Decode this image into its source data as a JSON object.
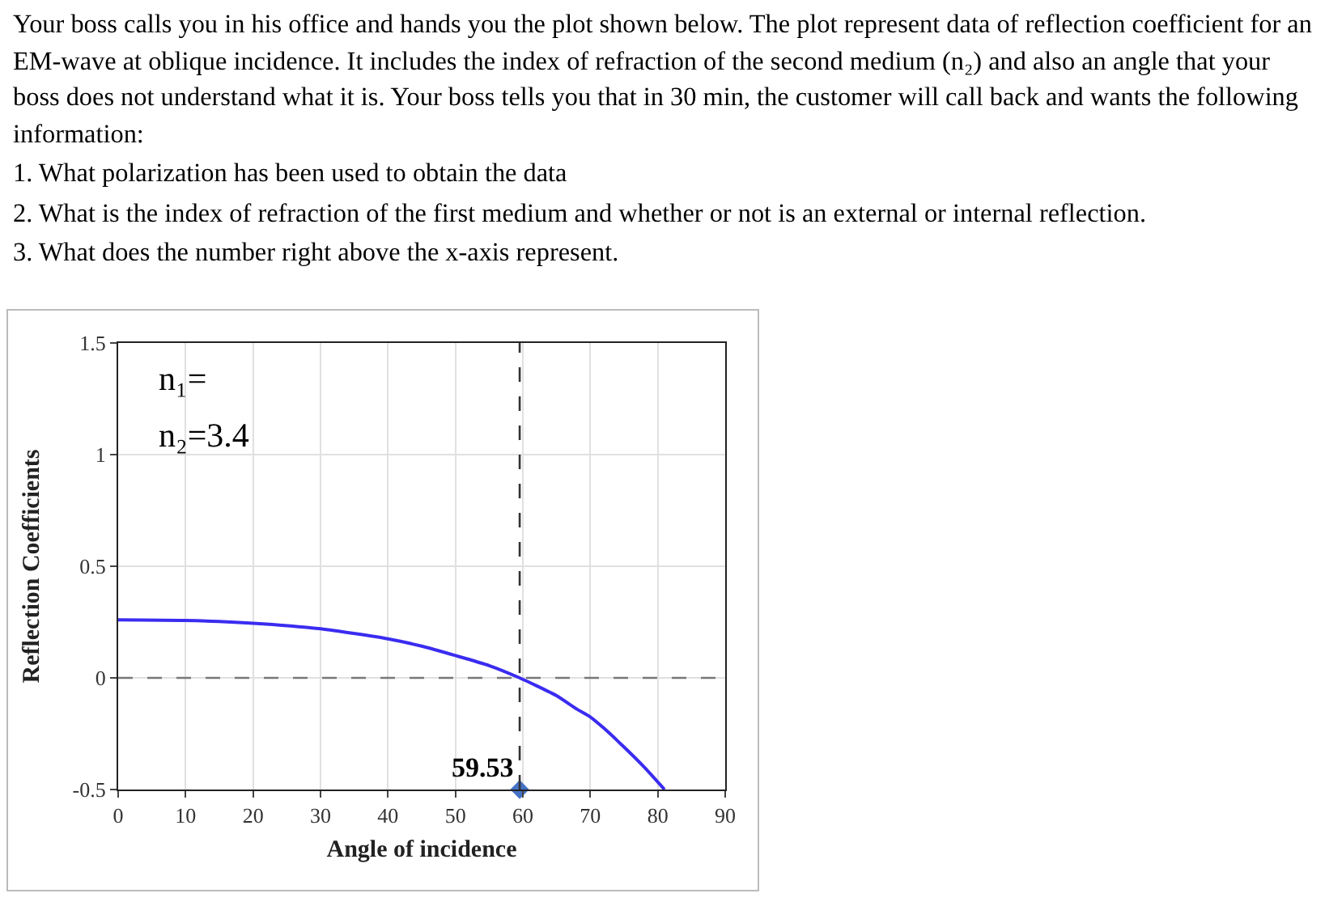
{
  "chart_data": {
    "type": "line",
    "annotations": [
      "Your boss calls you in his office and hands you the plot shown below. The plot represent data of reflection coefficient for an EM-wave at oblique incidence.  It includes the index of refraction of the second medium (n₂) and also an angle that your boss does not understand what it is.  Your boss tells you that in 30 min, the customer will call back and wants the following information:",
      "1. What polarization has been used to obtain the data",
      "2. What is the index of refraction of the first medium and whether or not is an external or internal reflection.",
      "3. What does the number right above the x-axis represent.",
      "n₁=",
      "n₂=3.4",
      {
        "text": "59.53",
        "x": 59.53,
        "y": -0.5
      }
    ],
    "xlabel": "Angle of incidence",
    "ylabel": "Reflection Coefficients",
    "xlim": [
      0,
      90
    ],
    "xticks": [
      0,
      10,
      20,
      30,
      40,
      50,
      60,
      70,
      80,
      90
    ],
    "ylim": [
      -0.5,
      1.5
    ],
    "yticks": [
      -0.5,
      0,
      0.5,
      1,
      1.5
    ],
    "grid": true,
    "series": [
      {
        "color": "#3a2cf0",
        "marker": "none",
        "x": [
          0,
          10,
          20,
          30,
          40,
          45,
          50,
          55,
          59.53,
          62,
          65,
          68,
          70,
          72,
          75,
          78,
          81
        ],
        "values": [
          0.26,
          0.257,
          0.245,
          0.22,
          0.175,
          0.142,
          0.1,
          0.055,
          0,
          -0.035,
          -0.08,
          -0.14,
          -0.175,
          -0.225,
          -0.31,
          -0.4,
          -0.5
        ]
      },
      {
        "type": "scatter",
        "color": "#4472c4",
        "marker": "diamond",
        "x": [
          59.53
        ],
        "values": [
          -0.5
        ]
      }
    ],
    "ref_lines": [
      {
        "axis": "y",
        "value": 0,
        "color": "#777777",
        "line_style": "dashed"
      },
      {
        "axis": "x",
        "value": 59.53,
        "color": "#333333",
        "line_style": "dashed"
      }
    ]
  }
}
